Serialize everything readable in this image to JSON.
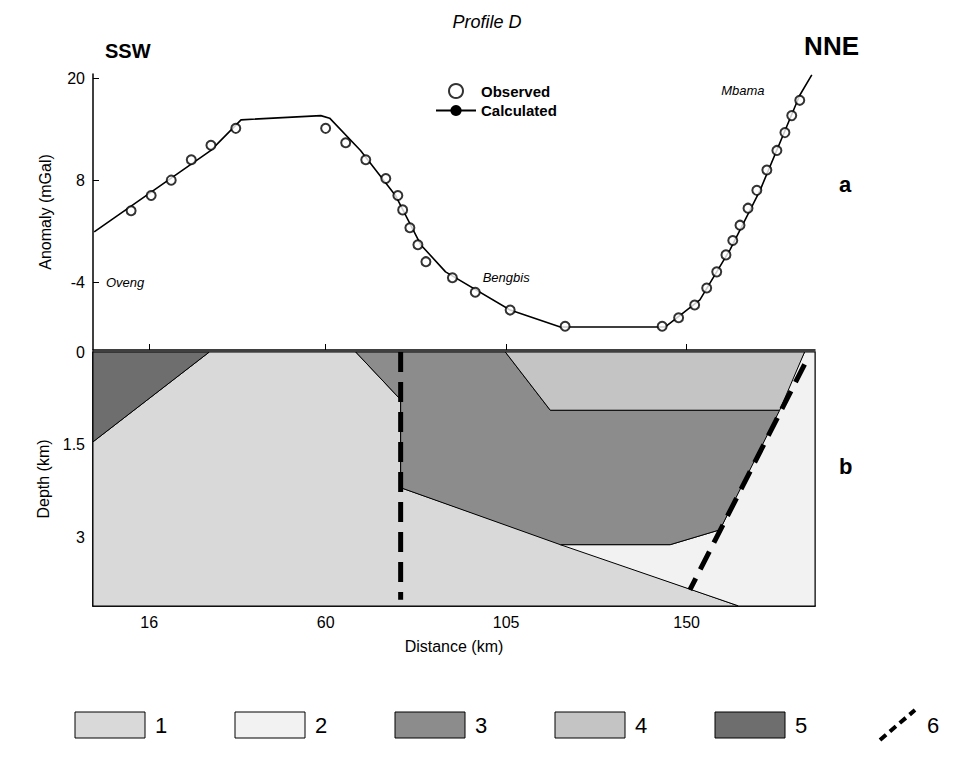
{
  "chart_data": [
    {
      "type": "line",
      "title": "Profile D",
      "left_label": "SSW",
      "right_label": "NNE",
      "panel_label": "a",
      "y_label": "Anomaly (mGal)",
      "xlim": [
        2,
        182
      ],
      "xticks": [
        16,
        60,
        105,
        150
      ],
      "ylim": [
        -12,
        20.5
      ],
      "yticks": [
        -4,
        8,
        20
      ],
      "tick_labels": "y",
      "grid": false,
      "legend": "top",
      "annotations": [
        {
          "text": "Oveng",
          "x": 10,
          "y": -4
        },
        {
          "text": "Bengbis",
          "x": 105,
          "y": -3.5
        },
        {
          "text": "Mbama",
          "x": 164,
          "y": 18.5
        }
      ],
      "series": [
        {
          "name": "Observed",
          "type": "scatter",
          "marker": "open_circle",
          "color": "#000000",
          "x": [
            11.5,
            16.5,
            21.5,
            26.5,
            31.4,
            37.6,
            60,
            65,
            70,
            75,
            78,
            79.2,
            81,
            83,
            85,
            91.6,
            97.3,
            106,
            119.7,
            143.9,
            148,
            152,
            155,
            157.5,
            159.8,
            161.5,
            163.3,
            165.3,
            167.5,
            170,
            172.5,
            174.5,
            176.2,
            178.2
          ],
          "values": [
            4.4,
            6.2,
            8.0,
            10.4,
            12.1,
            14.1,
            14.1,
            12.4,
            10.4,
            8.2,
            6.2,
            4.5,
            2.4,
            0.4,
            -1.6,
            -3.5,
            -5.2,
            -7.3,
            -9.2,
            -9.2,
            -8.2,
            -6.7,
            -4.7,
            -2.8,
            -0.8,
            0.9,
            2.7,
            4.7,
            6.8,
            9.2,
            11.5,
            13.6,
            15.6,
            17.4
          ]
        },
        {
          "name": "Calculated",
          "type": "line",
          "line_style": "solid",
          "color": "#000000",
          "x": [
            2.3,
            31.4,
            38.9,
            58.8,
            61,
            68.7,
            77.4,
            83.7,
            89.9,
            106,
            118.5,
            144.6,
            153.3,
            160.8,
            168.3,
            178.2,
            181.2
          ],
          "values": [
            1.9,
            11.5,
            15.1,
            15.6,
            15.3,
            11.5,
            6.2,
            0.4,
            -2.8,
            -7.3,
            -9.3,
            -9.3,
            -6.1,
            -0.2,
            6.8,
            18.0,
            20.4
          ]
        }
      ]
    },
    {
      "type": "section",
      "panel_label": "b",
      "x_label": "Distance (km)",
      "y_label": "Depth (km)",
      "xlim": [
        2,
        182
      ],
      "xticks": [
        16,
        60,
        105,
        150
      ],
      "ylim": [
        4.1,
        0
      ],
      "yticks": [
        0,
        1.5,
        3
      ],
      "grid": false,
      "legend": "bottom",
      "units": [
        {
          "name": "1",
          "color": "#d9d9d9",
          "polygons": [
            [
              [
                2,
                1.45
              ],
              [
                31,
                0
              ],
              [
                67.5,
                0
              ],
              [
                78.7,
                0.77
              ],
              [
                78.7,
                2.19
              ],
              [
                163,
                4.1
              ],
              [
                2,
                4.1
              ]
            ]
          ]
        },
        {
          "name": "2",
          "color": "#f2f2f2",
          "polygons": [
            [
              [
                118.5,
                3.11
              ],
              [
                145.9,
                3.11
              ],
              [
                158.3,
                2.87
              ],
              [
                179.4,
                0
              ],
              [
                182,
                0
              ],
              [
                182,
                4.1
              ],
              [
                163,
                4.1
              ]
            ]
          ]
        },
        {
          "name": "3",
          "color": "#8c8c8c",
          "polygons": [
            [
              [
                67.5,
                0
              ],
              [
                104.8,
                0
              ],
              [
                116,
                0.94
              ],
              [
                173.2,
                0.94
              ],
              [
                158.3,
                2.87
              ],
              [
                145.9,
                3.11
              ],
              [
                118.5,
                3.11
              ],
              [
                78.7,
                2.19
              ],
              [
                78.7,
                0.77
              ]
            ]
          ]
        },
        {
          "name": "4",
          "color": "#c4c4c4",
          "polygons": [
            [
              [
                104.8,
                0
              ],
              [
                179.4,
                0
              ],
              [
                173.2,
                0.94
              ],
              [
                116,
                0.94
              ]
            ]
          ]
        },
        {
          "name": "5",
          "color": "#6e6e6e",
          "polygons": [
            [
              [
                2,
                0
              ],
              [
                31,
                0
              ],
              [
                2,
                1.45
              ]
            ]
          ]
        }
      ],
      "lines": [
        {
          "name": "6",
          "color": "#000000",
          "line_style": "dashed",
          "segments": [
            [
              [
                78.7,
                0
              ],
              [
                78.7,
                4.0
              ]
            ],
            [
              [
                179.4,
                0.2
              ],
              [
                150.8,
                3.84
              ]
            ]
          ]
        }
      ]
    }
  ]
}
